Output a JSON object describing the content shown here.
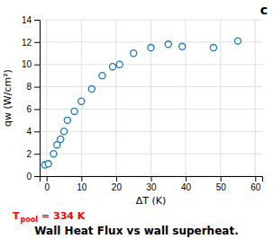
{
  "chart_data": {
    "type": "scatter",
    "title": "Wall Heat Flux vs wall superheat.",
    "xlabel": "ΔT (K)",
    "ylabel": "qw (W/cm²)",
    "x": [
      -0.5,
      0.5,
      2,
      3,
      4,
      5,
      6,
      8,
      10,
      13,
      16,
      19,
      21,
      25,
      30,
      35,
      39,
      48,
      55
    ],
    "values": [
      1.0,
      1.1,
      2.0,
      2.8,
      3.3,
      4.0,
      5.0,
      5.8,
      6.7,
      7.8,
      9.0,
      9.8,
      10.0,
      11.0,
      11.5,
      11.8,
      11.6,
      11.5,
      12.1
    ],
    "marker": "circle",
    "xlim": [
      -2,
      62
    ],
    "ylim": [
      0,
      14
    ],
    "xticks": [
      0,
      10,
      20,
      30,
      40,
      50,
      60
    ],
    "yticks": [
      0,
      2,
      4,
      6,
      8,
      10,
      12,
      14
    ],
    "grid": true,
    "annotations": [
      {
        "text": "c"
      },
      {
        "text": "T",
        "color": "red"
      },
      {
        "text": "pool",
        "color": "red"
      },
      {
        "text": "= 334 K",
        "color": "red"
      }
    ]
  }
}
